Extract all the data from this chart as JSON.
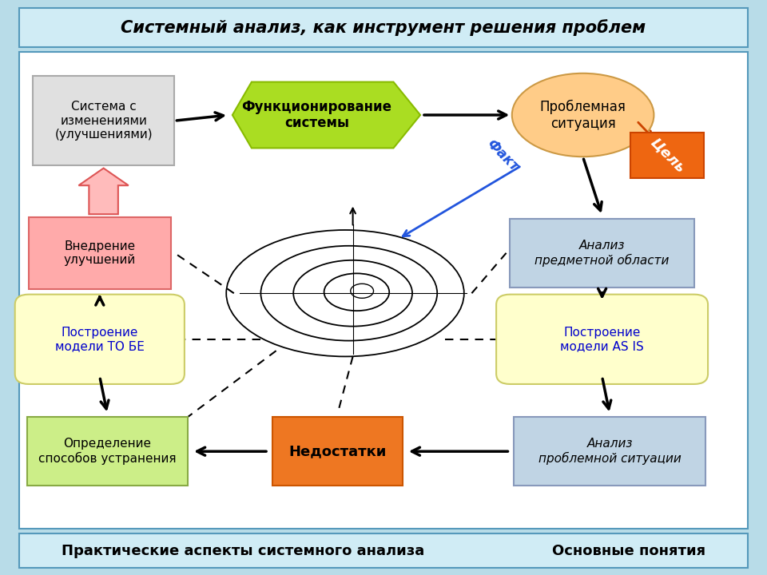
{
  "title": "Системный анализ, как инструмент решения проблем",
  "footer_left": "Практические аспекты системного анализа",
  "footer_right": "Основные понятия",
  "bg_color": "#b8dce8",
  "title_bg": "#d0ecf5",
  "footer_bg": "#d0ecf5",
  "sistema_text": "Система с\nизменениями\n(улучшениями)",
  "funkc_text": "Функционирование\nсистемы",
  "problem_text": "Проблемная\nситуация",
  "vnedrenie_text": "Внедрение\nулучшений",
  "analiz_pred_text": "Анализ\nпредметной области",
  "tobe_text": "Построение\nмодели ТО БЕ",
  "asis_text": "Построение\nмодели AS IS",
  "opredelenie_text": "Определение\nспособов устранения",
  "nedostatki_text": "Недостатки",
  "analiz_prob_text": "Анализ\nпроблемной ситуации",
  "fakt_text": "Факт",
  "cel_text": "Цель"
}
